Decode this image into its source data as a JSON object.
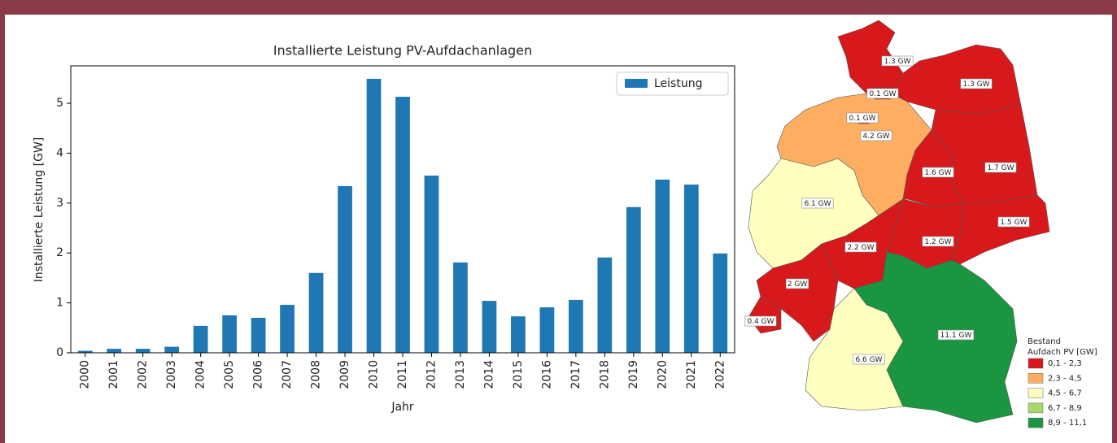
{
  "chart_data": {
    "type": "bar",
    "title": "Installierte Leistung PV-Aufdachanlagen",
    "x_label": "Jahr",
    "y_label": "Installierte Leistung [GW]",
    "categories": [
      "2000",
      "2001",
      "2002",
      "2003",
      "2004",
      "2005",
      "2006",
      "2007",
      "2008",
      "2009",
      "2010",
      "2011",
      "2012",
      "2013",
      "2014",
      "2015",
      "2016",
      "2017",
      "2018",
      "2019",
      "2020",
      "2021",
      "2022"
    ],
    "series": [
      {
        "name": "Leistung",
        "color": "#1f77b4",
        "values": [
          0.04,
          0.08,
          0.08,
          0.12,
          0.54,
          0.75,
          0.7,
          0.96,
          1.6,
          3.34,
          5.49,
          5.13,
          3.55,
          1.81,
          1.04,
          0.73,
          0.91,
          1.06,
          1.91,
          2.92,
          3.47,
          3.37,
          1.99
        ]
      }
    ],
    "ylim": [
      0,
      5.75
    ],
    "yticks": [
      0,
      1,
      2,
      3,
      4,
      5
    ],
    "grid": false,
    "legend": "upper right"
  },
  "map": {
    "legend_title": [
      "Bestand",
      "Aufdach PV [GW]"
    ],
    "legend": [
      {
        "label": "0,1 - 2,3",
        "color": "#d7191c"
      },
      {
        "label": "2,3 - 4,5",
        "color": "#fdae61"
      },
      {
        "label": "4,5 - 6,7",
        "color": "#ffffbf"
      },
      {
        "label": "6,7 - 8,9",
        "color": "#a6d96a"
      },
      {
        "label": "8,9 - 11,1",
        "color": "#1a9641"
      }
    ],
    "regions": [
      {
        "label": "1.3 GW",
        "color": "#d7191c"
      },
      {
        "label": "1.3 GW",
        "color": "#d7191c"
      },
      {
        "label": "4.2 GW",
        "color": "#fdae61"
      },
      {
        "label": "1.7 GW",
        "color": "#d7191c"
      },
      {
        "label": "1.6 GW",
        "color": "#d7191c"
      },
      {
        "label": "6.1 GW",
        "color": "#ffffbf"
      },
      {
        "label": "2.2 GW",
        "color": "#d7191c"
      },
      {
        "label": "1.2 GW",
        "color": "#d7191c"
      },
      {
        "label": "1.5 GW",
        "color": "#d7191c"
      },
      {
        "label": "2 GW",
        "color": "#d7191c"
      },
      {
        "label": "0.4 GW",
        "color": "#d7191c"
      },
      {
        "label": "11.1 GW",
        "color": "#1a9641"
      },
      {
        "label": "6.6 GW",
        "color": "#ffffbf"
      },
      {
        "label": "0.1 GW",
        "color": "#d7191c"
      },
      {
        "label": "0.1 GW",
        "color": "#d7191c"
      }
    ]
  }
}
